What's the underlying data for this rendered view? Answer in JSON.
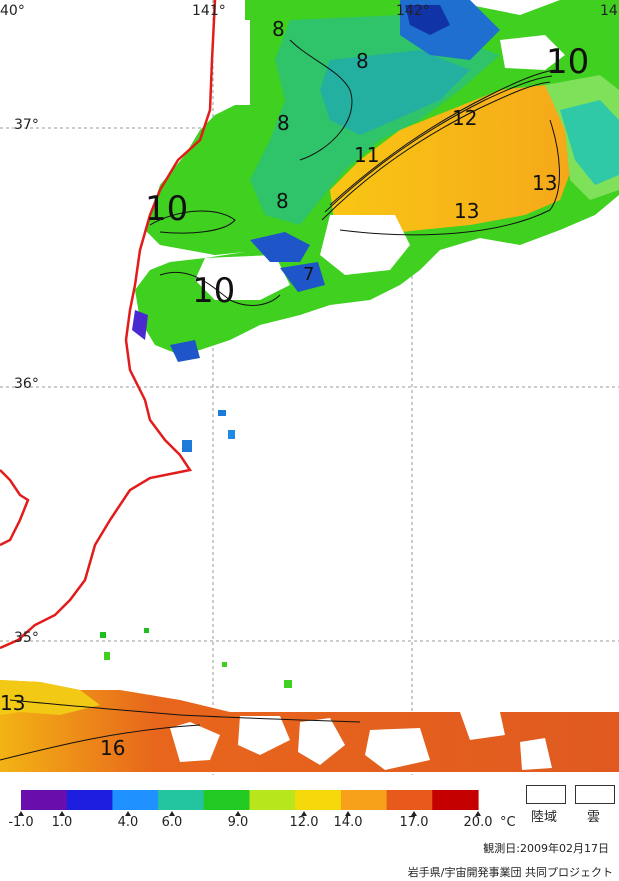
{
  "map": {
    "latitudes": [
      "37°",
      "36°",
      "35°"
    ],
    "longitudes": [
      "40°",
      "141°",
      "142°",
      "14"
    ],
    "contour_labels": [
      "8",
      "8",
      "8",
      "8",
      "10",
      "12",
      "11",
      "13",
      "13",
      "10",
      "10",
      "7",
      "13",
      "16"
    ]
  },
  "legend": {
    "ticks": [
      "-1.0",
      "1.0",
      "4.0",
      "6.0",
      "9.0",
      "12.0",
      "14.0",
      "17.0",
      "20.0"
    ],
    "unit": "°C",
    "land_label": "陸域",
    "cloud_label": "雲",
    "colors": [
      "#6a0dad",
      "#1e1ee0",
      "#1e90ff",
      "#23c4a0",
      "#22c922",
      "#b8e61c",
      "#f5d90a",
      "#f7a11a",
      "#e85a1c",
      "#c40000"
    ]
  },
  "footer": {
    "date": "観測日:2009年02月17日",
    "credit": "岩手県/宇宙開発事業団 共同プロジェクト"
  }
}
